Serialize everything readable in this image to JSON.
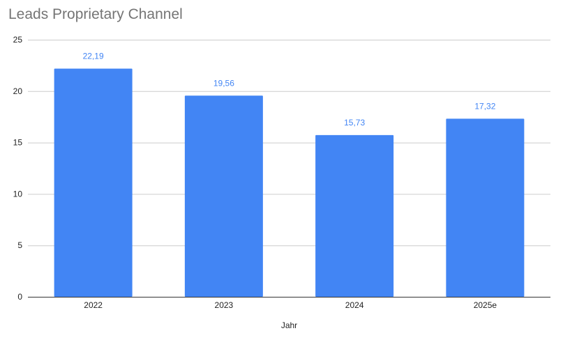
{
  "chart_data": {
    "type": "bar",
    "title": "Leads Proprietary Channel",
    "xlabel": "Jahr",
    "ylabel": "",
    "categories": [
      "2022",
      "2023",
      "2024",
      "2025e"
    ],
    "values": [
      22.19,
      19.56,
      15.73,
      17.32
    ],
    "data_labels": [
      "22,19",
      "19,56",
      "15,73",
      "17,32"
    ],
    "ylim": [
      0,
      25
    ],
    "yticks": [
      0,
      5,
      10,
      15,
      20,
      25
    ],
    "grid": true,
    "legend": "none",
    "bar_color": "#4285f4"
  }
}
